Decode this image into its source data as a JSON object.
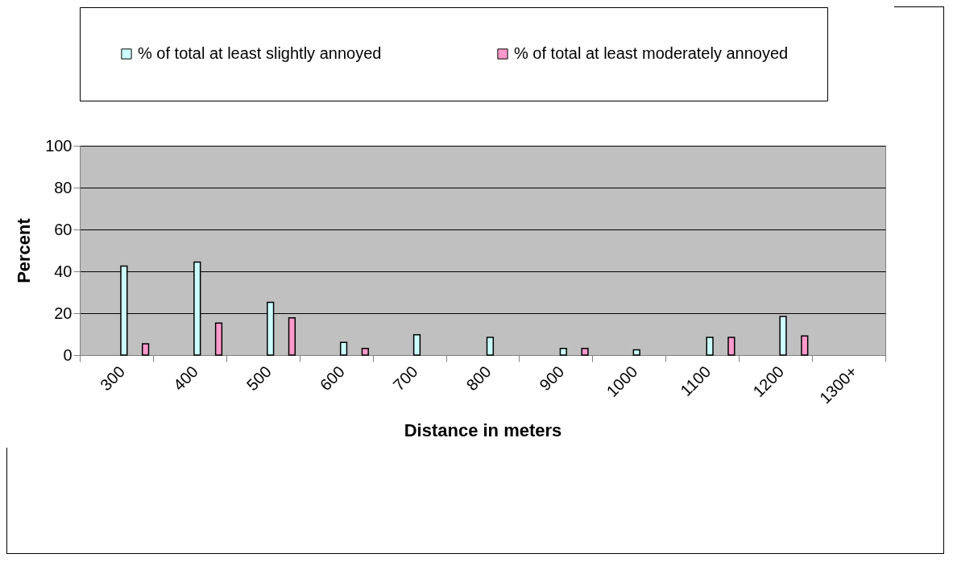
{
  "chart_data": {
    "type": "bar",
    "xlabel": "Distance in meters",
    "ylabel": "Percent",
    "categories": [
      "300",
      "400",
      "500",
      "600",
      "700",
      "800",
      "900",
      "1000",
      "1100",
      "1200",
      "1300+"
    ],
    "series": [
      {
        "name": "% of total at least slightly annoyed",
        "color": "#ccffff",
        "values": [
          42.5,
          44.4,
          25.2,
          6.1,
          9.7,
          8.5,
          3.2,
          2.5,
          8.5,
          18.5,
          null
        ]
      },
      {
        "name": "% of total at least moderately annoyed",
        "color": "#ff99cc",
        "values": [
          5.4,
          15.3,
          17.8,
          3.2,
          null,
          null,
          3.2,
          null,
          8.5,
          9.1,
          null
        ]
      }
    ],
    "ylim": [
      0,
      100
    ],
    "yticks": [
      0,
      20,
      40,
      60,
      80,
      100
    ],
    "grid": "y",
    "legend": "top"
  }
}
